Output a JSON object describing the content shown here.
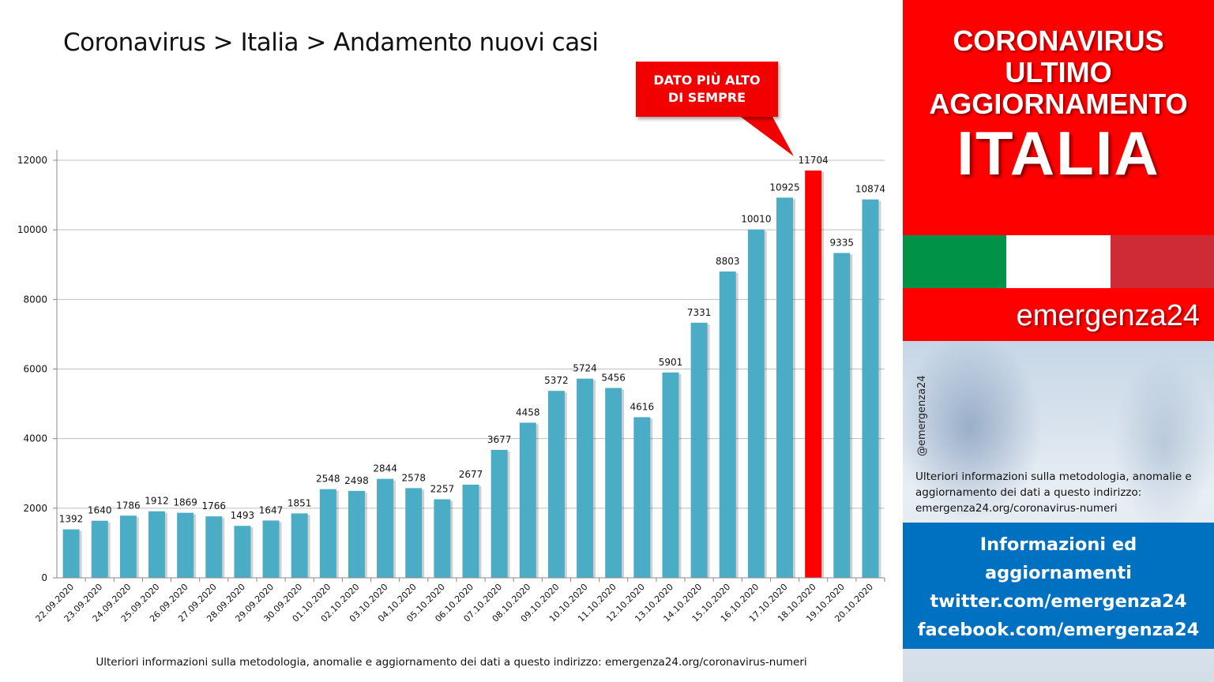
{
  "page": {
    "title": "Coronavirus > Italia > Andamento nuovi casi",
    "footer_note": "Ulteriori informazioni sulla metodologia, anomalie e aggiornamento dei dati a questo indirizzo: emergenza24.org/coronavirus-numeri"
  },
  "callout": {
    "line1": "DATO PIÙ ALTO",
    "line2": "DI SEMPRE",
    "color": "#f20000"
  },
  "chart_data": {
    "type": "bar",
    "categories": [
      "22.09.2020",
      "23.09.2020",
      "24.09.2020",
      "25.09.2020",
      "26.09.2020",
      "27.09.2020",
      "28.09.2020",
      "29.09.2020",
      "30.09.2020",
      "01.10.2020",
      "02.10.2020",
      "03.10.2020",
      "04.10.2020",
      "05.10.2020",
      "06.10.2020",
      "07.10.2020",
      "08.10.2020",
      "09.10.2020",
      "10.10.2020",
      "11.10.2020",
      "12.10.2020",
      "13.10.2020",
      "14.10.2020",
      "15.10.2020",
      "16.10.2020",
      "17.10.2020",
      "18.10.2020",
      "19.10.2020",
      "20.10.2020"
    ],
    "values": [
      1392,
      1640,
      1786,
      1912,
      1869,
      1766,
      1493,
      1647,
      1851,
      2548,
      2498,
      2844,
      2578,
      2257,
      2677,
      3677,
      4458,
      5372,
      5724,
      5456,
      4616,
      5901,
      7331,
      8803,
      10010,
      10925,
      11704,
      9335,
      10874
    ],
    "title": "Coronavirus > Italia > Andamento nuovi casi",
    "xlabel": "",
    "ylabel": "",
    "ylim": [
      0,
      12000
    ],
    "yticks": [
      0,
      2000,
      4000,
      6000,
      8000,
      10000,
      12000
    ],
    "grid": true,
    "data_labels": true,
    "highlight_index": 26,
    "colors": {
      "bar": "#4bacc6",
      "highlight": "#ff0000",
      "grid": "#bfbfbf"
    }
  },
  "sidebar": {
    "headline": [
      "CORONAVIRUS",
      "ULTIMO",
      "AGGIORNAMENTO"
    ],
    "country": "ITALIA",
    "brand": "emergenza24",
    "handle": "@emergenza24",
    "note": "Ulteriori informazioni sulla metodologia, anomalie e aggiornamento dei dati a questo indirizzo: emergenza24.org/coronavirus-numeri",
    "info": [
      "Informazioni ed",
      "aggiornamenti",
      "twitter.com/emergenza24",
      "facebook.com/emergenza24"
    ],
    "flag_colors": [
      "#009246",
      "#ffffff",
      "#ce2b37"
    ],
    "colors": {
      "red_panel": "#ff0000",
      "info_box": "#0070c0"
    }
  }
}
